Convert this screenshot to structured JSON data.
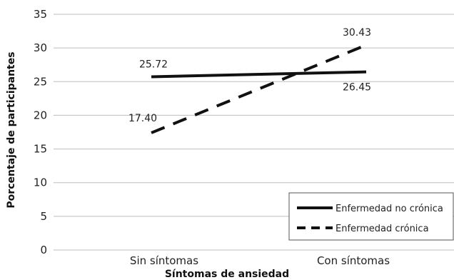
{
  "chart_data": {
    "type": "line",
    "categories": [
      "Sin síntomas",
      "Con síntomas"
    ],
    "series": [
      {
        "name": "Enfermedad no crónica",
        "values": [
          25.72,
          26.45
        ],
        "labels": [
          "25.72",
          "26.45"
        ],
        "style": "solid",
        "color": "#111111"
      },
      {
        "name": "Enfermedad crónica",
        "values": [
          17.4,
          30.43
        ],
        "labels": [
          "17.40",
          "30.43"
        ],
        "style": "dashed",
        "color": "#111111"
      }
    ],
    "title": "",
    "xlabel": "Síntomas de ansiedad",
    "ylabel": "Porcentaje de participantes",
    "ylim": [
      0,
      35
    ],
    "yticks": [
      0,
      5,
      10,
      15,
      20,
      25,
      30,
      35
    ],
    "grid": true,
    "legend_position": "bottom-right",
    "colors": {
      "grid": "#bdbdbd",
      "line": "#111111"
    }
  }
}
